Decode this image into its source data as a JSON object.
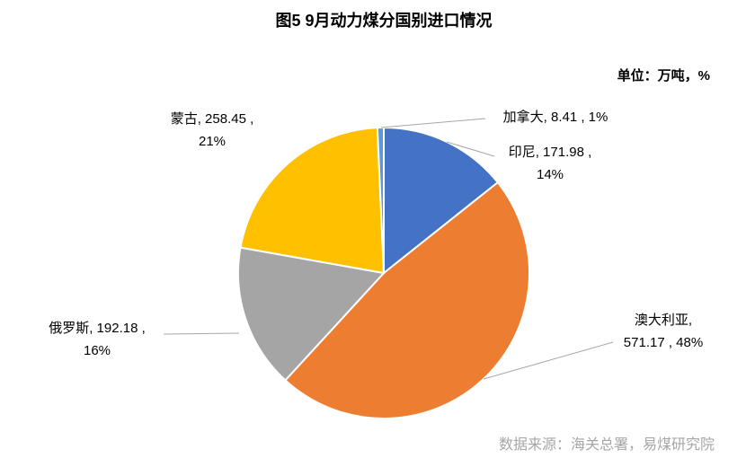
{
  "chart_data": {
    "type": "pie",
    "title": "图5 9月动力煤分国别进口情况",
    "unit_note": "单位：万吨，%",
    "source": "数据来源：海关总署，易煤研究院",
    "categories": [
      "印尼",
      "澳大利亚",
      "俄罗斯",
      "蒙古",
      "加拿大"
    ],
    "values": [
      171.98,
      571.17,
      192.18,
      258.45,
      8.41
    ],
    "value_labels": [
      [
        "印尼, 171.98 ,",
        "14%"
      ],
      [
        "澳大利亚,",
        "571.17 , 48%"
      ],
      [
        "俄罗斯, 192.18 ,",
        "16%"
      ],
      [
        "蒙古, 258.45 ,",
        "21%"
      ],
      [
        "加拿大, 8.41 , 1%"
      ]
    ],
    "colors": [
      "#4472c4",
      "#ed7d31",
      "#a5a5a5",
      "#ffc000",
      "#5b9bd5"
    ]
  }
}
